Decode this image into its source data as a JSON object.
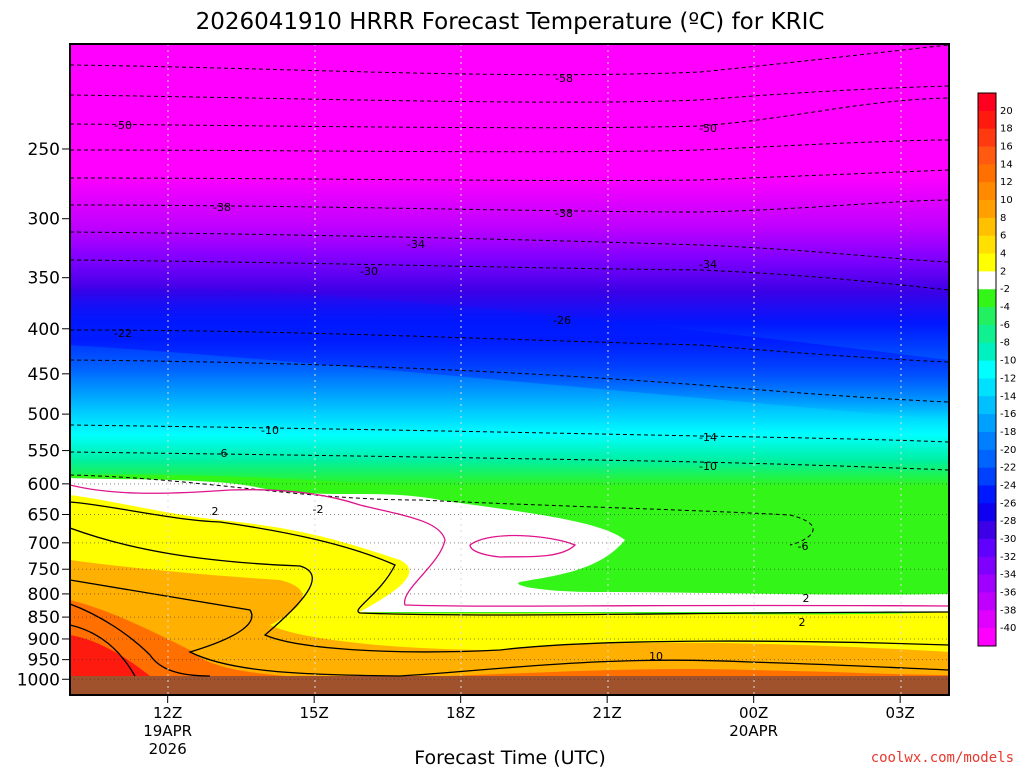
{
  "chart_data": {
    "type": "heatmap",
    "title": "2026041910 HRRR Forecast Temperature (ºC) for KRIC",
    "xlabel": "Forecast Time (UTC)",
    "ylabel": "",
    "credit": "coolwx.com/models",
    "x_ticks": [
      {
        "label": "12Z",
        "sub1": "19APR",
        "sub2": "2026"
      },
      {
        "label": "15Z",
        "sub1": "",
        "sub2": ""
      },
      {
        "label": "18Z",
        "sub1": "",
        "sub2": ""
      },
      {
        "label": "21Z",
        "sub1": "",
        "sub2": ""
      },
      {
        "label": "00Z",
        "sub1": "20APR",
        "sub2": ""
      },
      {
        "label": "03Z",
        "sub1": "",
        "sub2": ""
      }
    ],
    "y_ticks": [
      "250",
      "300",
      "350",
      "400",
      "450",
      "500",
      "550",
      "600",
      "650",
      "700",
      "750",
      "800",
      "850",
      "900",
      "950",
      "1000"
    ],
    "colorbar_labels": [
      "20",
      "18",
      "16",
      "14",
      "12",
      "10",
      "8",
      "6",
      "4",
      "2",
      "-2",
      "-4",
      "-6",
      "-8",
      "-10",
      "-12",
      "-14",
      "-16",
      "-18",
      "-20",
      "-22",
      "-24",
      "-26",
      "-28",
      "-30",
      "-32",
      "-34",
      "-36",
      "-38",
      "-40"
    ],
    "contour_labels": [
      "-58",
      "-50",
      "-50",
      "-38",
      "-38",
      "-34",
      "-34",
      "-30",
      "-26",
      "-22",
      "-14",
      "-10",
      "-10",
      "-6",
      "-6",
      "-2",
      "2",
      "2",
      "2",
      "10"
    ],
    "colors": {
      "ground": "#a0522d",
      "warm_deep": "#ff1010",
      "yellow": "#ffff00",
      "white": "#ffffff",
      "green": "#33f518",
      "cyan": "#00ffff",
      "blue": "#0050ff",
      "purple": "#8a00ff",
      "magenta": "#ff00ff",
      "credit": "#e8382d"
    }
  }
}
